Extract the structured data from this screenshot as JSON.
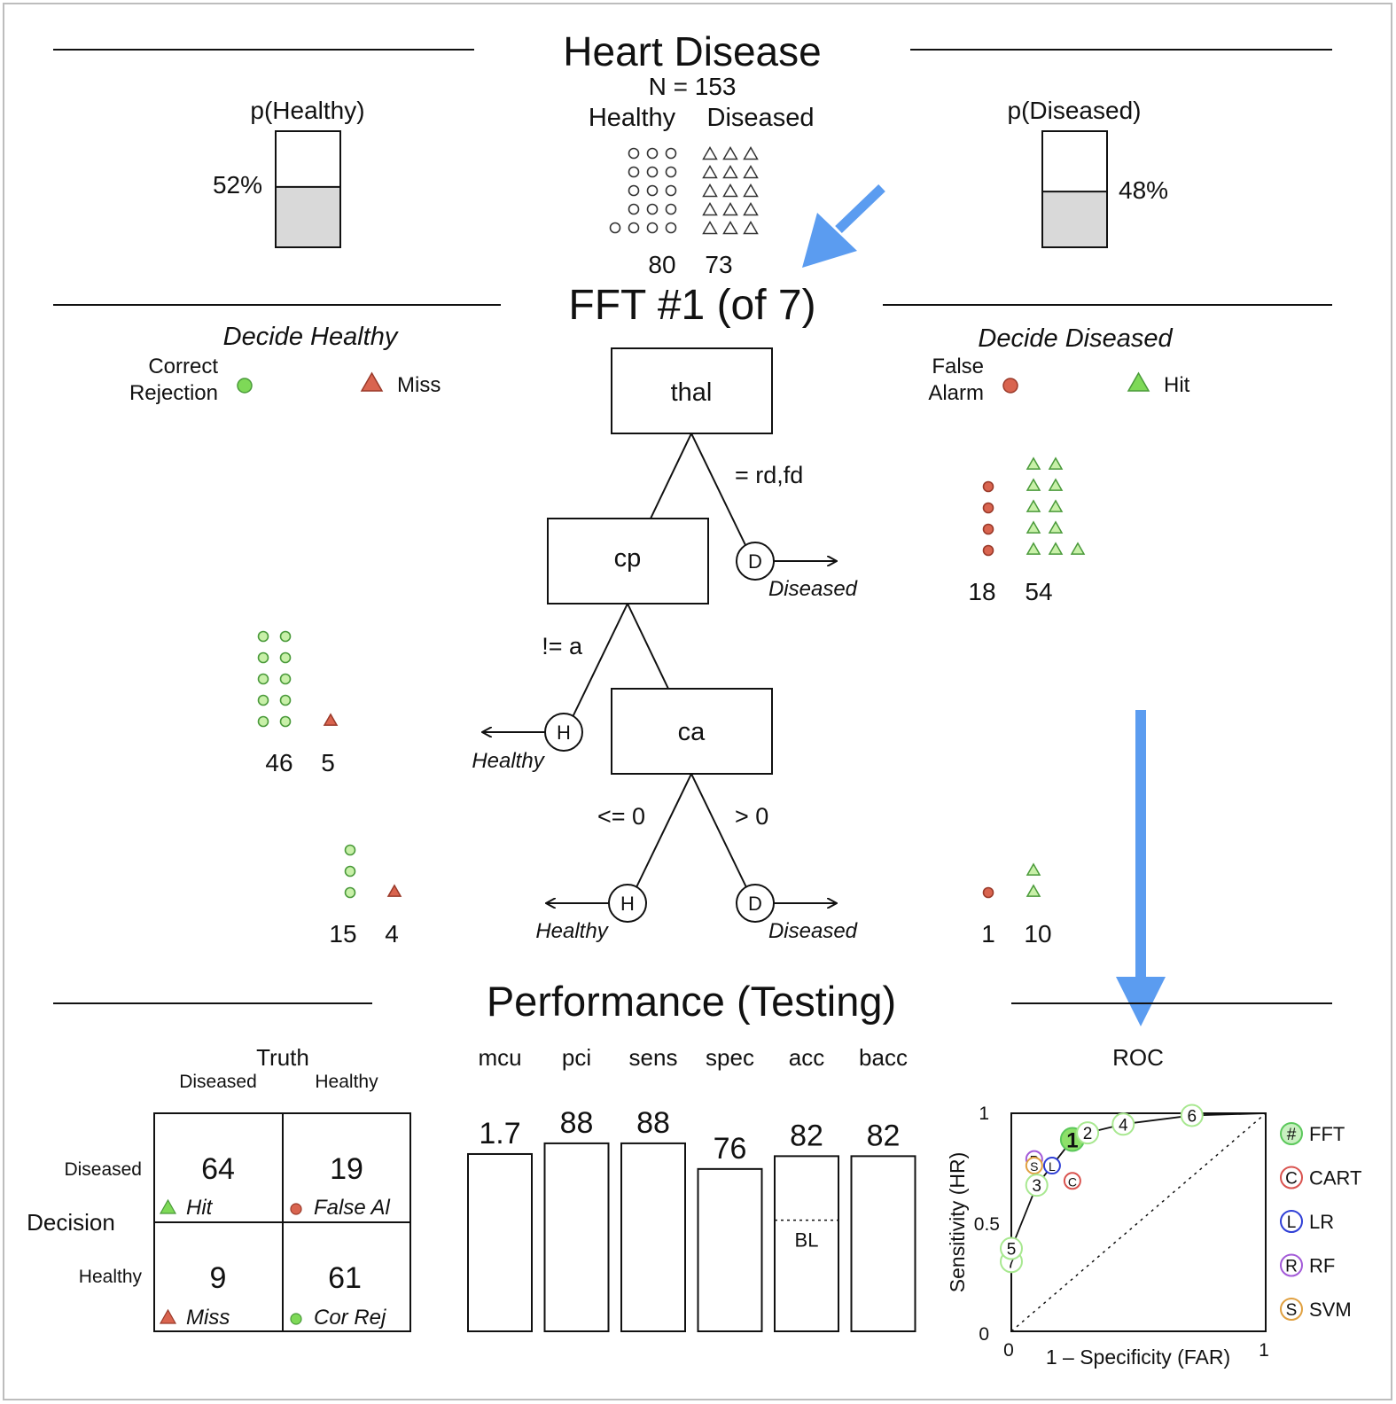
{
  "title": "Heart Disease",
  "n_label": "N = 153",
  "class_labels": {
    "healthy": "Healthy",
    "diseased": "Diseased"
  },
  "class_counts": {
    "healthy": "80",
    "diseased": "73"
  },
  "prior": {
    "healthy_label": "p(Healthy)",
    "healthy_pct": "52%",
    "healthy_frac": 0.52,
    "diseased_label": "p(Diseased)",
    "diseased_pct": "48%",
    "diseased_frac": 0.48
  },
  "tree": {
    "title": "FFT #1 (of 7)",
    "nodes": {
      "thal": "thal",
      "cp": "cp",
      "ca": "ca"
    },
    "edges": {
      "thal_right": "= rd,fd",
      "cp_left": "!= a",
      "ca_left": "<= 0",
      "ca_right": "> 0"
    },
    "exit_symbols": {
      "H": "H",
      "D": "D"
    },
    "exit_labels": {
      "healthy": "Healthy",
      "diseased": "Diseased"
    }
  },
  "left_header": {
    "title": "Decide Healthy",
    "correct_rejection": "Correct\nRejection",
    "miss": "Miss"
  },
  "right_header": {
    "title": "Decide Diseased",
    "false_alarm": "False\nAlarm",
    "hit": "Hit"
  },
  "level_counts": {
    "level1_right": {
      "false_alarm": "18",
      "hit": "54"
    },
    "level2_left": {
      "correct_rejection": "46",
      "miss": "5"
    },
    "level3_left": {
      "correct_rejection": "15",
      "miss": "4"
    },
    "level3_right": {
      "false_alarm": "1",
      "hit": "10"
    }
  },
  "performance": {
    "title": "Performance (Testing)",
    "truth_label": "Truth",
    "decision_label": "Decision",
    "col_diseased": "Diseased",
    "col_healthy": "Healthy",
    "row_diseased": "Diseased",
    "row_healthy": "Healthy",
    "hit": "64",
    "hit_label": "Hit",
    "false_alarm": "19",
    "false_alarm_label": "False Al",
    "miss": "9",
    "miss_label": "Miss",
    "cor_rej": "61",
    "cor_rej_label": "Cor Rej",
    "bars": [
      {
        "name": "mcu",
        "value": "1.7",
        "level": 0.83
      },
      {
        "name": "pci",
        "value": "88",
        "level": 0.88
      },
      {
        "name": "sens",
        "value": "88",
        "level": 0.88
      },
      {
        "name": "spec",
        "value": "76",
        "level": 0.76
      },
      {
        "name": "acc",
        "value": "82",
        "level": 0.82
      },
      {
        "name": "bacc",
        "value": "82",
        "level": 0.82
      }
    ],
    "baseline_label": "BL",
    "baseline_level": 0.52
  },
  "roc": {
    "title": "ROC",
    "xlabel": "1 – Specificity (FAR)",
    "ylabel": "Sensitivity (HR)",
    "xticks": [
      "0",
      "1"
    ],
    "yticks": [
      "0",
      "0.5",
      "1"
    ],
    "fft_points": [
      {
        "label": "7",
        "far": 0.0,
        "hr": 0.32
      },
      {
        "label": "5",
        "far": 0.0,
        "hr": 0.38
      },
      {
        "label": "3",
        "far": 0.1,
        "hr": 0.67
      },
      {
        "label": "1",
        "far": 0.24,
        "hr": 0.88,
        "selected": true
      },
      {
        "label": "2",
        "far": 0.3,
        "hr": 0.91
      },
      {
        "label": "4",
        "far": 0.44,
        "hr": 0.95
      },
      {
        "label": "6",
        "far": 0.71,
        "hr": 0.99
      }
    ],
    "model_points": [
      {
        "label": "C",
        "far": 0.24,
        "hr": 0.69,
        "color": "#d9534f"
      },
      {
        "label": "L",
        "far": 0.16,
        "hr": 0.76,
        "color": "#2f3fd6"
      },
      {
        "label": "R",
        "far": 0.09,
        "hr": 0.79,
        "color": "#a35ad8"
      },
      {
        "label": "S",
        "far": 0.09,
        "hr": 0.76,
        "color": "#e0a040"
      }
    ],
    "legend": [
      {
        "symbol": "#",
        "name": "FFT",
        "color": "#5bc85b",
        "fill": "#c8f0c0"
      },
      {
        "symbol": "C",
        "name": "CART",
        "color": "#d9534f",
        "fill": "#ffffff"
      },
      {
        "symbol": "L",
        "name": "LR",
        "color": "#2f3fd6",
        "fill": "#ffffff"
      },
      {
        "symbol": "R",
        "name": "RF",
        "color": "#a35ad8",
        "fill": "#ffffff"
      },
      {
        "symbol": "S",
        "name": "SVM",
        "color": "#e0a040",
        "fill": "#ffffff"
      }
    ]
  },
  "colors": {
    "correct": "#7ed957",
    "error": "#d9644f",
    "bar_fill": "#d9d9d9",
    "arrow_blue": "#5b9cf0"
  }
}
